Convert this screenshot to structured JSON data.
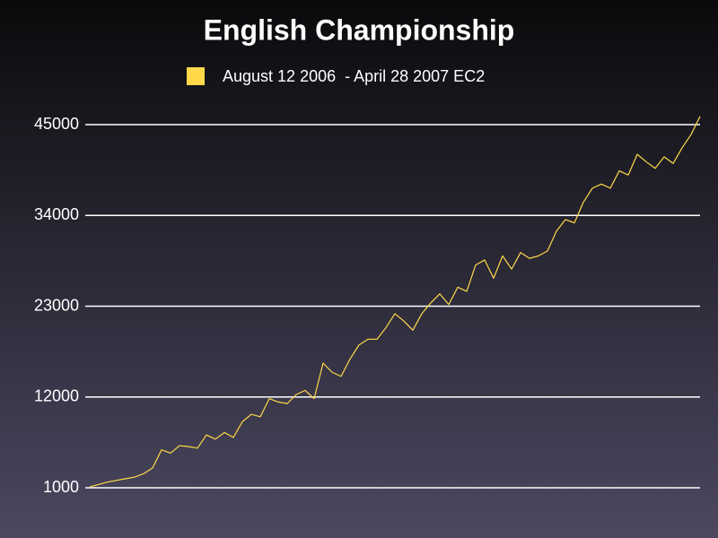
{
  "chart_data": {
    "type": "line",
    "title": "English Championship",
    "series": [
      {
        "name": "August 12 2006  - April 28 2007 EC2",
        "color": "#ffd94a",
        "values": [
          1100,
          1400,
          1700,
          1900,
          2100,
          2300,
          2700,
          3400,
          5600,
          5200,
          6100,
          6000,
          5800,
          7400,
          6900,
          7700,
          7100,
          9000,
          9900,
          9600,
          11800,
          11400,
          11200,
          12300,
          12800,
          11800,
          16100,
          15000,
          14500,
          16600,
          18300,
          19000,
          19000,
          20400,
          22100,
          21200,
          20100,
          22100,
          23400,
          24500,
          23200,
          25300,
          24800,
          28000,
          28600,
          26400,
          29100,
          27500,
          29500,
          28800,
          29100,
          29700,
          32100,
          33500,
          33100,
          35600,
          37300,
          37800,
          37300,
          39400,
          38900,
          41400,
          40500,
          39700,
          41100,
          40300,
          42200,
          43800,
          46000
        ]
      }
    ],
    "ylim": [
      1000,
      47000
    ],
    "yticks": [
      1000,
      12000,
      23000,
      34000,
      45000
    ],
    "grid": true
  }
}
